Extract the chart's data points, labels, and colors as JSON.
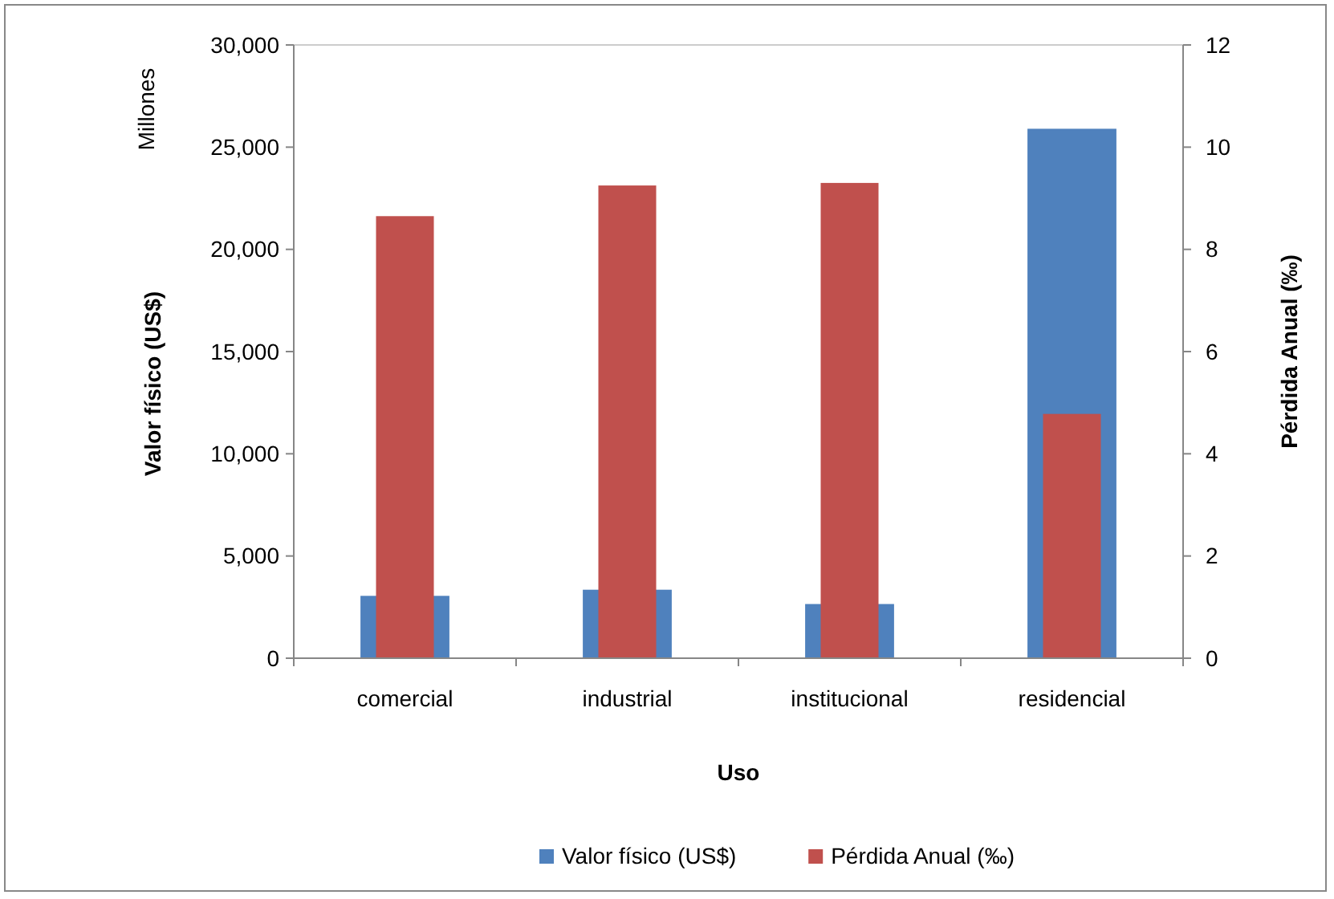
{
  "chart_data": {
    "type": "bar",
    "xlabel": "Uso",
    "ylabel": "Valor físico (US$)",
    "y2label": "Pérdida Anual (‰)",
    "annotations": [
      "Millones"
    ],
    "categories": [
      "comercial",
      "industrial",
      "institucional",
      "residencial"
    ],
    "series": [
      {
        "name": "Valor físico (US$)",
        "color": "#4f81bd",
        "values": [
          3050,
          3350,
          2650,
          25900
        ]
      },
      {
        "name": "Pérdida Anual (‰)",
        "color": "#c0504d",
        "axis": "y2",
        "values": [
          8.65,
          9.25,
          9.3,
          4.78
        ]
      }
    ],
    "ylim": [
      0,
      30000
    ],
    "yticks": [
      {
        "value": 0,
        "label": "0"
      },
      {
        "value": 5000,
        "label": "5,000"
      },
      {
        "value": 10000,
        "label": "10,000"
      },
      {
        "value": 15000,
        "label": "15,000"
      },
      {
        "value": 20000,
        "label": "20,000"
      },
      {
        "value": 25000,
        "label": "25,000"
      },
      {
        "value": 30000,
        "label": "30,000"
      }
    ],
    "y2lim": [
      0,
      12
    ],
    "y2ticks": [
      0,
      2,
      4,
      6,
      8,
      10,
      12
    ],
    "legend": "bottom"
  }
}
